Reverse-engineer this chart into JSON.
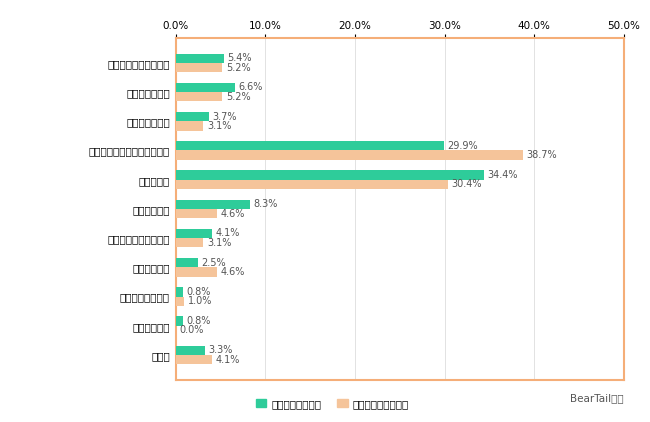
{
  "categories": [
    "その他",
    "留学するため",
    "学費を貯めるため",
    "車購入のため",
    "マイホーム購入のため",
    "子どものため",
    "老後のため",
    "利用用途は決めず貯めている",
    "結婚資金のため",
    "旅行に行くため",
    "一人暮らしをするため"
  ],
  "series1_label": "家計簿付けている",
  "series2_label": "家計簿付けていない",
  "series1_values": [
    3.3,
    0.8,
    0.8,
    2.5,
    4.1,
    8.3,
    34.4,
    29.9,
    3.7,
    6.6,
    5.4
  ],
  "series2_values": [
    4.1,
    0.0,
    1.0,
    4.6,
    3.1,
    4.6,
    30.4,
    38.7,
    3.1,
    5.2,
    5.2
  ],
  "series1_labels": [
    "3.3%",
    "0.8%",
    "0.8%",
    "2.5%",
    "4.1%",
    "8.3%",
    "34.4%",
    "29.9%",
    "3.7%",
    "6.6%",
    "5.4%"
  ],
  "series2_labels": [
    "4.1%",
    "0.0%",
    "1.0%",
    "4.6%",
    "3.1%",
    "4.6%",
    "30.4%",
    "38.7%",
    "3.1%",
    "5.2%",
    "5.2%"
  ],
  "color1": "#2ecc9a",
  "color2": "#f5c49a",
  "xlim": [
    0,
    50
  ],
  "xticks": [
    0,
    10,
    20,
    30,
    40,
    50
  ],
  "xtick_labels": [
    "0.0%",
    "10.0%",
    "20.0%",
    "30.0%",
    "40.0%",
    "50.0%"
  ],
  "background_color": "#ffffff",
  "border_color": "#f5ae78",
  "credit": "BearTail調べ",
  "bar_height": 0.32,
  "font_size_labels": 7,
  "font_size_ticks": 7.5,
  "font_size_legend": 7.5
}
